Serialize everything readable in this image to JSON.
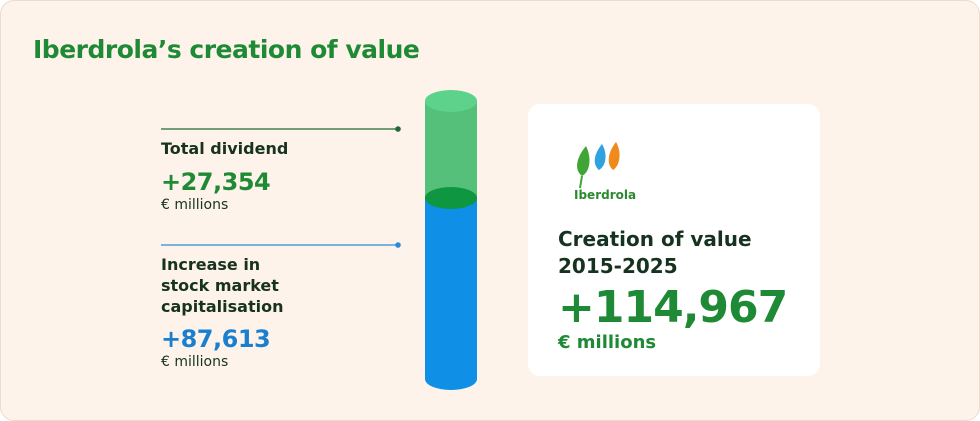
{
  "title": "Iberdrola’s creation of value",
  "items": [
    {
      "label": "Total dividend",
      "value": "+27,354",
      "unit": "€ millions"
    },
    {
      "label": "Increase in stock market capitalisation",
      "value": "+87,613",
      "unit": "€ millions"
    }
  ],
  "summary": {
    "logo_text": "Iberdrola",
    "title": "Creation of value 2015-2025",
    "value": "+114,967",
    "unit": "€ millions"
  }
}
